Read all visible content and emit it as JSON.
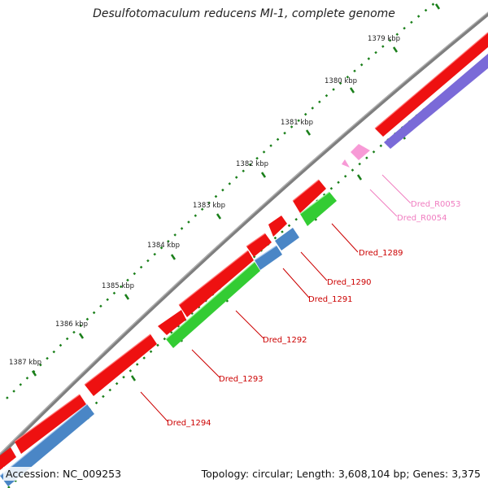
{
  "title": "Desulfotomaculum reducens MI-1, complete genome",
  "footer": {
    "accession": "Accession: NC_009253",
    "summary": "Topology: circular; Length: 3,608,104 bp; Genes: 3,375"
  },
  "colors": {
    "backbone": "#808080",
    "red_gene": "#ee1111",
    "blue_gene": "#4a86c6",
    "purple_gene": "#7a6ad8",
    "green_gene": "#33cc33",
    "pink_gene": "#f79ad6",
    "tick": "#1a7f1a",
    "label_red": "#cc0000",
    "label_pink": "#f07cc0"
  },
  "scale_labels": [
    "1379 kbp",
    "1380 kbp",
    "1381 kbp",
    "1382 kbp",
    "1383 kbp",
    "1384 kbp",
    "1385 kbp",
    "1386 kbp",
    "1387 kbp"
  ],
  "gene_labels": [
    {
      "text": "Dred_R0053",
      "color": "pink"
    },
    {
      "text": "Dred_R0054",
      "color": "pink"
    },
    {
      "text": "Dred_1289",
      "color": "red"
    },
    {
      "text": "Dred_1290",
      "color": "red"
    },
    {
      "text": "Dred_1291",
      "color": "red"
    },
    {
      "text": "Dred_1292",
      "color": "red"
    },
    {
      "text": "Dred_1293",
      "color": "red"
    },
    {
      "text": "Dred_1294",
      "color": "red"
    }
  ]
}
